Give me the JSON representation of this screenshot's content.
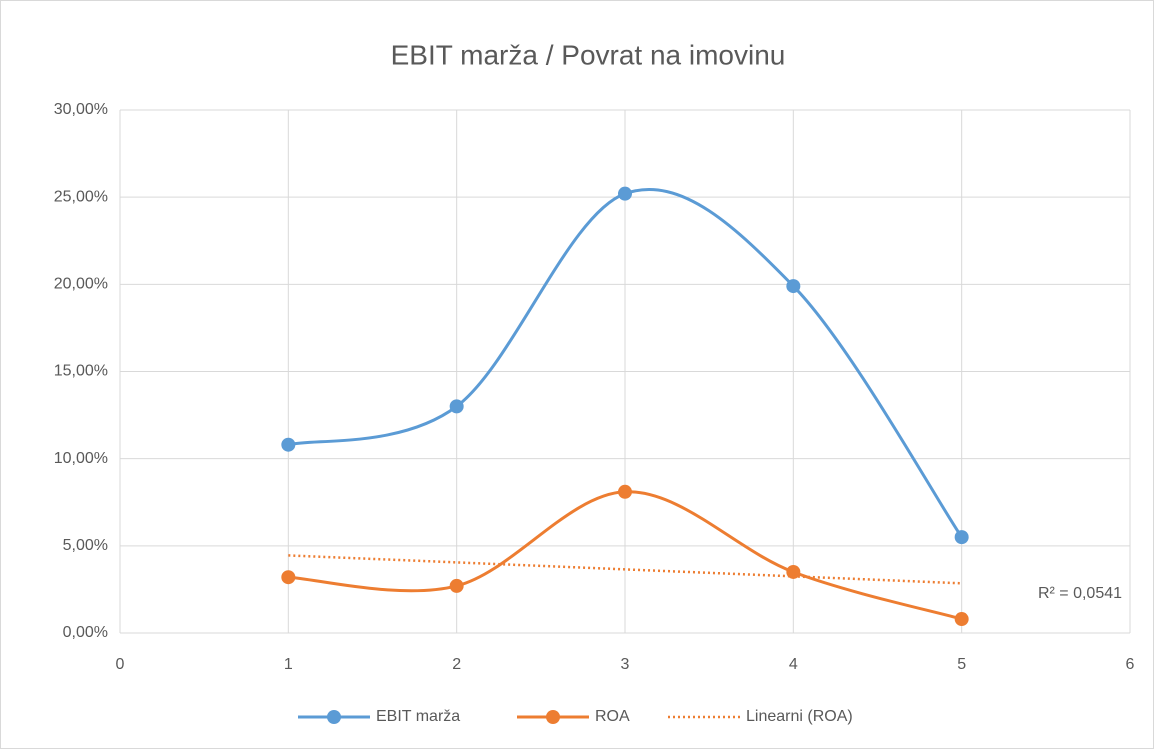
{
  "chart_data": {
    "type": "scatter_smooth",
    "title": "EBIT marža / Povrat na imovinu",
    "xlim": [
      0,
      6
    ],
    "xticks": [
      0,
      1,
      2,
      3,
      4,
      5,
      6
    ],
    "ylim": [
      0,
      30
    ],
    "yticks": [
      {
        "value": 0,
        "label": "0,00%"
      },
      {
        "value": 5,
        "label": "5,00%"
      },
      {
        "value": 10,
        "label": "10,00%"
      },
      {
        "value": 15,
        "label": "15,00%"
      },
      {
        "value": 20,
        "label": "20,00%"
      },
      {
        "value": 25,
        "label": "25,00%"
      },
      {
        "value": 30,
        "label": "30,00%"
      }
    ],
    "grid": true,
    "legend": "bottom",
    "series": [
      {
        "name": "EBIT marža",
        "color": "#5b9bd5",
        "x": [
          1,
          2,
          3,
          4,
          5
        ],
        "values": [
          10.8,
          13.0,
          25.2,
          19.9,
          5.5
        ]
      },
      {
        "name": "ROA",
        "color": "#ed7d31",
        "x": [
          1,
          2,
          3,
          4,
          5
        ],
        "values": [
          3.2,
          2.7,
          8.1,
          3.5,
          0.8
        ]
      },
      {
        "name": "Linearni (ROA)",
        "color": "#ed7d31",
        "dashed": true,
        "x": [
          1,
          5
        ],
        "values": [
          4.45,
          2.85
        ]
      }
    ],
    "annotation": "R² = 0,0541"
  }
}
